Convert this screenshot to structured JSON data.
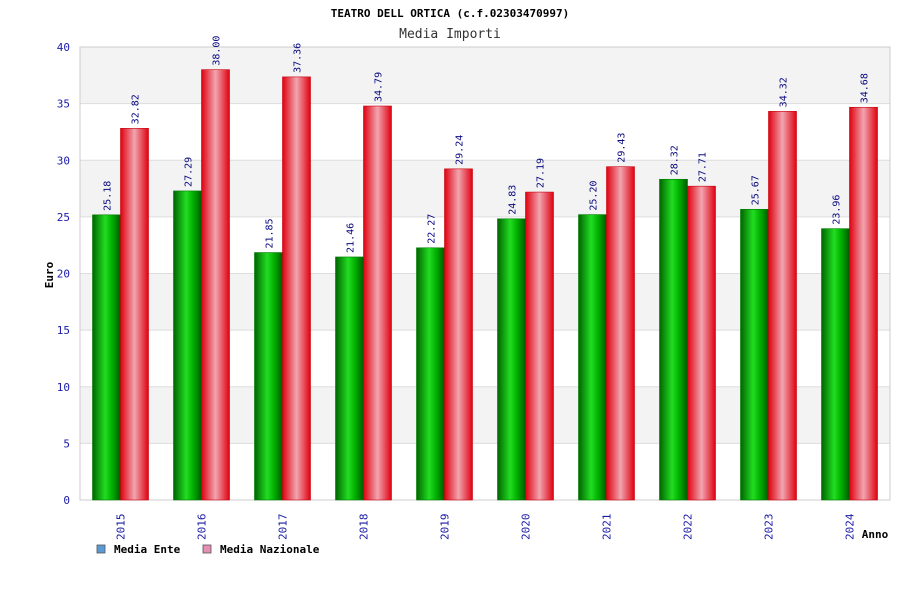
{
  "chart_data": {
    "type": "bar",
    "title": "TEATRO DELL ORTICA (c.f.02303470997)",
    "subtitle": "Media Importi",
    "xlabel": "Anno",
    "ylabel": "Euro",
    "ylim": [
      0,
      40
    ],
    "yticks": [
      0,
      5,
      10,
      15,
      20,
      25,
      30,
      35,
      40
    ],
    "categories": [
      "2015",
      "2016",
      "2017",
      "2018",
      "2019",
      "2020",
      "2021",
      "2022",
      "2023",
      "2024"
    ],
    "series": [
      {
        "name": "Media Ente",
        "values": [
          25.18,
          27.29,
          21.85,
          21.46,
          22.27,
          24.83,
          25.2,
          28.32,
          25.67,
          23.96
        ],
        "labels": [
          "25.18",
          "27.29",
          "21.85",
          "21.46",
          "22.27",
          "24.83",
          "25.20",
          "28.32",
          "25.67",
          "23.96"
        ]
      },
      {
        "name": "Media Nazionale",
        "values": [
          32.82,
          38.0,
          37.36,
          34.79,
          29.24,
          27.19,
          29.43,
          27.71,
          34.32,
          34.68
        ],
        "labels": [
          "32.82",
          "38.00",
          "37.36",
          "34.79",
          "29.24",
          "27.19",
          "29.43",
          "27.71",
          "34.32",
          "34.68"
        ]
      }
    ],
    "legend": [
      {
        "name": "Media Ente",
        "swatch_color": "#5b9bd5"
      },
      {
        "name": "Media Nazionale",
        "swatch_color": "#e58fb5"
      }
    ],
    "legend_position": "bottom-left",
    "grid": true,
    "colors": {
      "ente": "#00b400",
      "nazionale": "#f01020",
      "band": "#f3f3f3",
      "grid": "#dddddd"
    }
  }
}
